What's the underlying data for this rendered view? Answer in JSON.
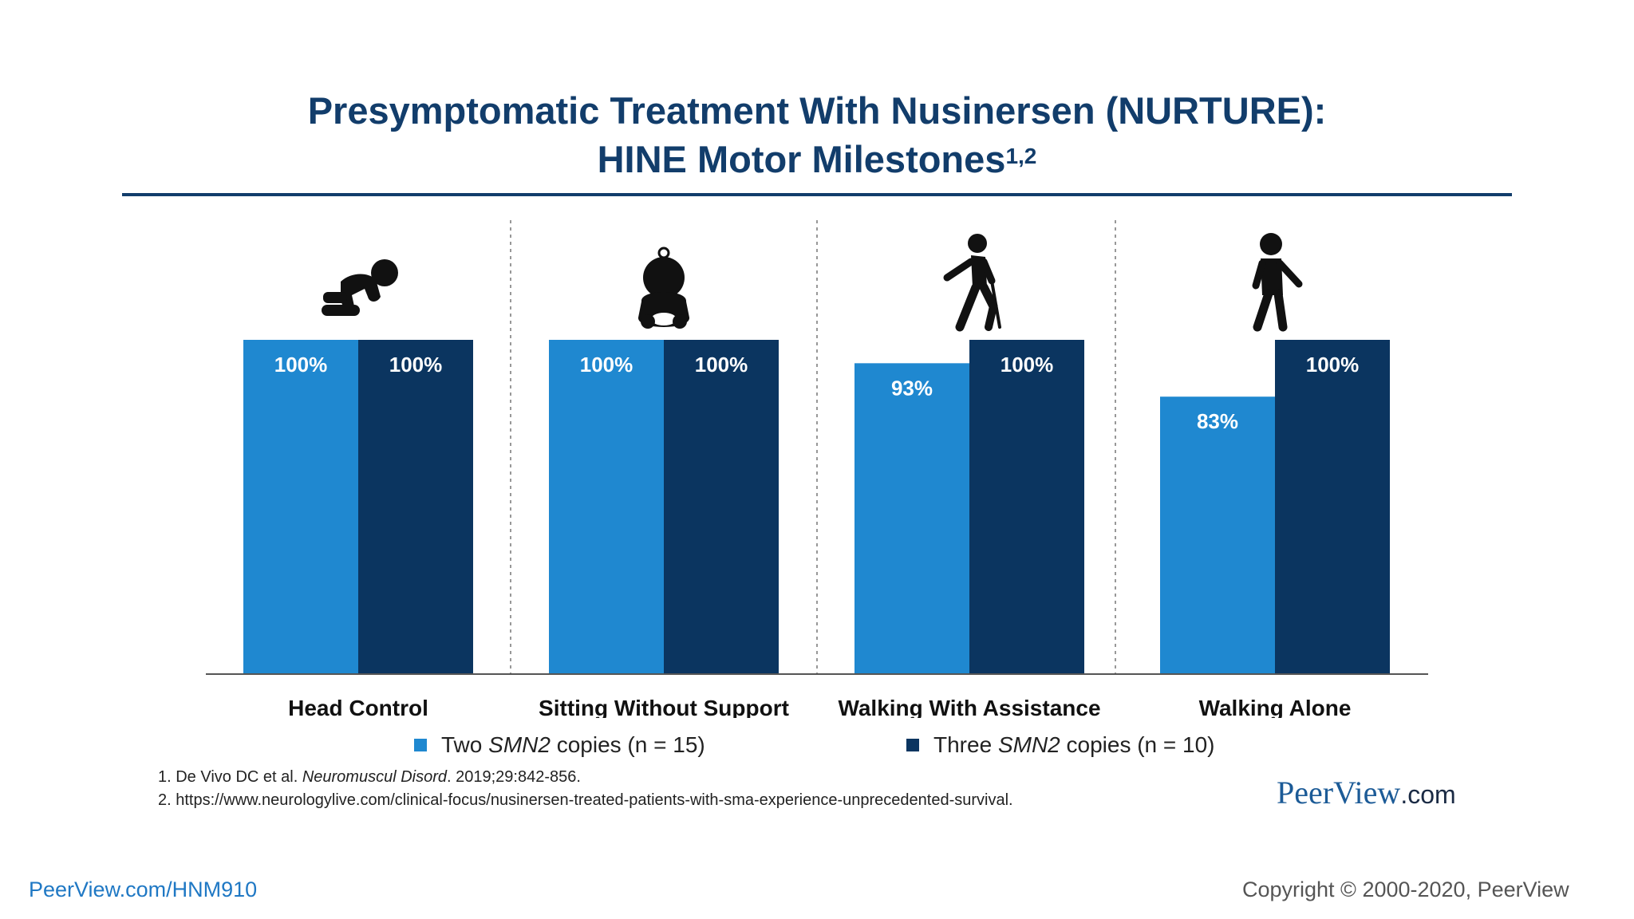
{
  "title_line1": "Presymptomatic Treatment With Nusinersen (NURTURE):",
  "title_line2": "HINE Motor Milestones",
  "title_sup": "1,2",
  "chart_data": {
    "type": "bar",
    "categories": [
      "Head Control",
      "Sitting Without Support",
      "Walking With Assistance",
      "Walking Alone"
    ],
    "category_icons": [
      "crawling-baby-icon",
      "sitting-baby-icon",
      "walking-with-cane-icon",
      "walking-person-icon"
    ],
    "series": [
      {
        "name": "Two SMN2 copies (n = 15)",
        "color": "#1f88d0",
        "values": [
          100,
          100,
          93,
          83
        ],
        "labels": [
          "100%",
          "100%",
          "93%",
          "83%"
        ]
      },
      {
        "name": "Three SMN2 copies (n = 10)",
        "color": "#0b3560",
        "values": [
          100,
          100,
          100,
          100
        ],
        "labels": [
          "100%",
          "100%",
          "100%",
          "100%"
        ]
      }
    ],
    "ylim": [
      0,
      100
    ],
    "grid": false,
    "legend_position": "bottom"
  },
  "legend": {
    "item1": {
      "pre": "Two ",
      "gene": "SMN2",
      "post": " copies (n = 15)"
    },
    "item2": {
      "pre": "Three ",
      "gene": "SMN2",
      "post": " copies (n = 10)"
    }
  },
  "references": {
    "ref1_pre": "1. De Vivo DC et al. ",
    "ref1_journal": "Neuromuscul Disord",
    "ref1_post": ". 2019;29:842-856.",
    "ref2": "2. https://www.neurologylive.com/clinical-focus/nusinersen-treated-patients-with-sma-experience-unprecedented-survival."
  },
  "brand": {
    "name": "PeerView",
    "suffix": ".com"
  },
  "footer": {
    "link": "PeerView.com/HNM910",
    "copyright": "Copyright © 2000-2020, PeerView"
  }
}
